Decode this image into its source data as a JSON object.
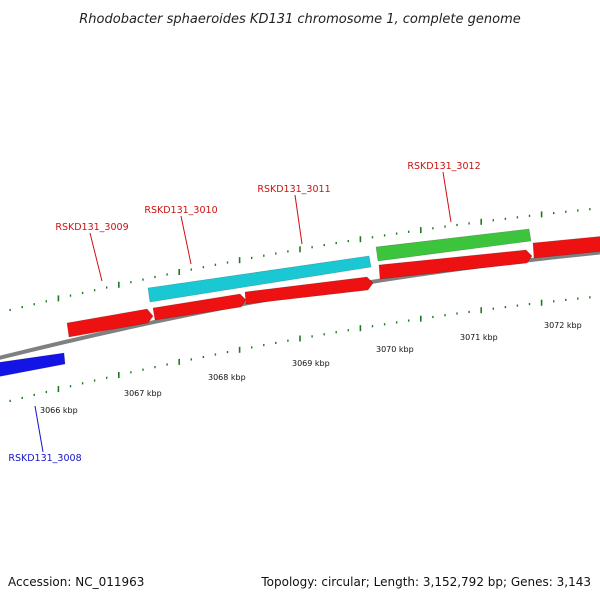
{
  "title": "Rhodobacter sphaeroides KD131 chromosome 1, complete genome",
  "footer": {
    "accession": "Accession: NC_011963",
    "summary": "Topology: circular; Length: 3,152,792 bp; Genes: 3,143"
  },
  "colors": {
    "backbone": "#808080",
    "tick": "#1f7a1f",
    "gene_red": "#ee1111",
    "gene_cyan": "#19c8d2",
    "gene_green": "#3cc43c",
    "gene_blue": "#1414e6",
    "label_red": "#cc1111",
    "label_blue": "#1414cc"
  },
  "ruler": {
    "labels": [
      "3066 kbp",
      "3067 kbp",
      "3068 kbp",
      "3069 kbp",
      "3070 kbp",
      "3071 kbp",
      "3072 kbp"
    ]
  },
  "genes": [
    {
      "id": "RSKD131_3008",
      "color": "gene_blue",
      "strand": "+",
      "label_color": "label_blue"
    },
    {
      "id": "RSKD131_3009",
      "color": "gene_red",
      "strand": "+",
      "label_color": "label_red"
    },
    {
      "id": "RSKD131_3010",
      "color": "gene_cyan",
      "strand": "+",
      "label_color": "label_red"
    },
    {
      "id": "RSKD131_3011",
      "color": "gene_red",
      "strand": "+",
      "label_color": "label_red"
    },
    {
      "id": "RSKD131_3012",
      "color": "gene_green",
      "strand": "+",
      "label_color": "label_red"
    }
  ]
}
